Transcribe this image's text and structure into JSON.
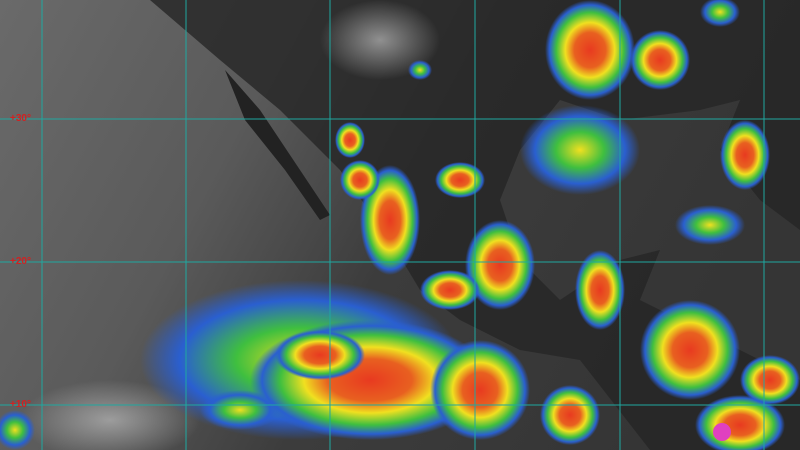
{
  "map": {
    "grid_color": "#1fa8a0",
    "latitude_labels": [
      "+30°",
      "+20°",
      "+10°"
    ],
    "label_color": "#d42020",
    "colors": {
      "ocean_clear": "#5a5a5a",
      "land": "#2a2a2a",
      "cloud_blue": "#2a5fd0",
      "cloud_green": "#3fbf3f",
      "cloud_yellow": "#f0e020",
      "cloud_red": "#e83a20",
      "cloud_magenta": "#e040c0"
    }
  }
}
